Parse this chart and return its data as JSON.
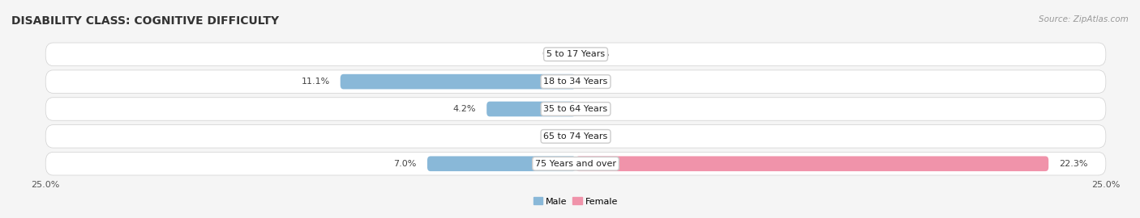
{
  "title": "DISABILITY CLASS: COGNITIVE DIFFICULTY",
  "source_text": "Source: ZipAtlas.com",
  "categories": [
    "5 to 17 Years",
    "18 to 34 Years",
    "35 to 64 Years",
    "65 to 74 Years",
    "75 Years and over"
  ],
  "male_values": [
    0.0,
    11.1,
    4.2,
    0.0,
    7.0
  ],
  "female_values": [
    0.0,
    0.0,
    0.0,
    0.0,
    22.3
  ],
  "x_min": -25.0,
  "x_max": 25.0,
  "male_color": "#89b8d8",
  "female_color": "#f093aa",
  "male_label": "Male",
  "female_label": "Female",
  "bar_height": 0.55,
  "row_color": "#e8e8e8",
  "background_color": "#f5f5f5",
  "title_fontsize": 10,
  "label_fontsize": 8,
  "value_fontsize": 8,
  "tick_fontsize": 8,
  "source_fontsize": 7.5,
  "legend_fontsize": 8
}
